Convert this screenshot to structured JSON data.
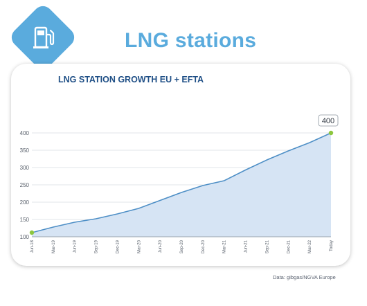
{
  "header": {
    "title": "LNG stations",
    "icon": "fuel-pump-icon",
    "accent_color": "#5aabdd"
  },
  "chart_data": {
    "type": "area",
    "title": "LNG STATION GROWTH EU + EFTA",
    "categories": [
      "Jun-18",
      "Mar-19",
      "Jun-19",
      "Sep-19",
      "Dec-19",
      "Mar-20",
      "Jun-20",
      "Sep-20",
      "Dec-20",
      "Mar-21",
      "Jun-21",
      "Sep-21",
      "Dec-21",
      "Mar-22",
      "Today"
    ],
    "values": [
      112,
      128,
      142,
      152,
      166,
      182,
      205,
      228,
      248,
      262,
      293,
      322,
      348,
      372,
      400
    ],
    "ylim": [
      100,
      400
    ],
    "yticks": [
      100,
      150,
      200,
      250,
      300,
      350,
      400
    ],
    "grid": true,
    "line_color": "#4e8fc6",
    "fill_color": "#d6e4f4",
    "point_color": "#8cc63f",
    "callout": "400"
  },
  "footer": {
    "source": "Data: gibgas/NGVA Europe"
  }
}
